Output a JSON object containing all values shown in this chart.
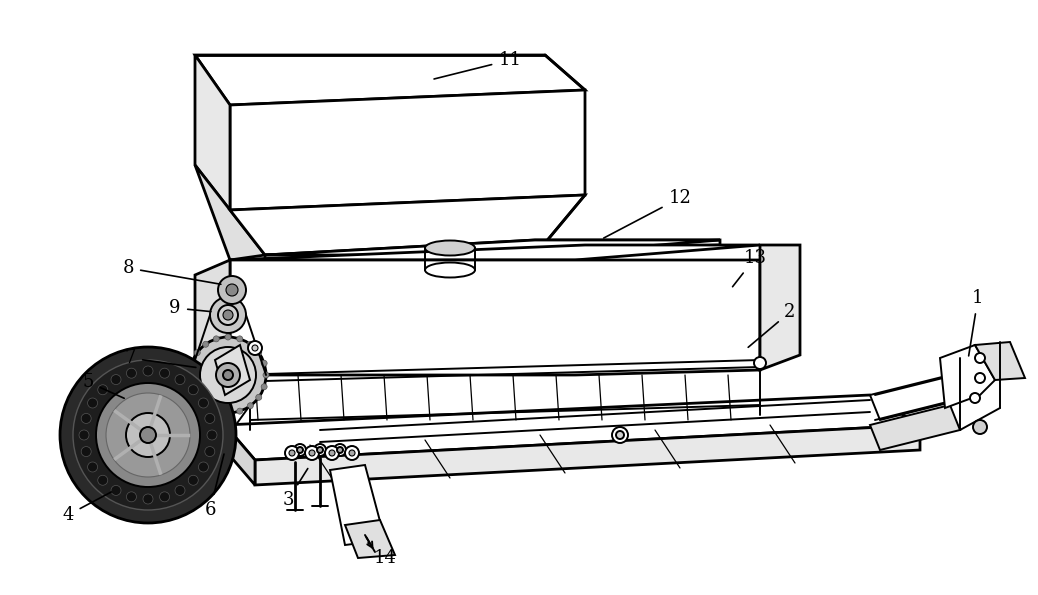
{
  "background_color": "#ffffff",
  "line_color": "#000000",
  "label_color": "#000000",
  "fig_width": 10.38,
  "fig_height": 5.95,
  "dpi": 100,
  "lw_main": 1.4,
  "lw_thick": 2.0,
  "lw_thin": 0.9
}
